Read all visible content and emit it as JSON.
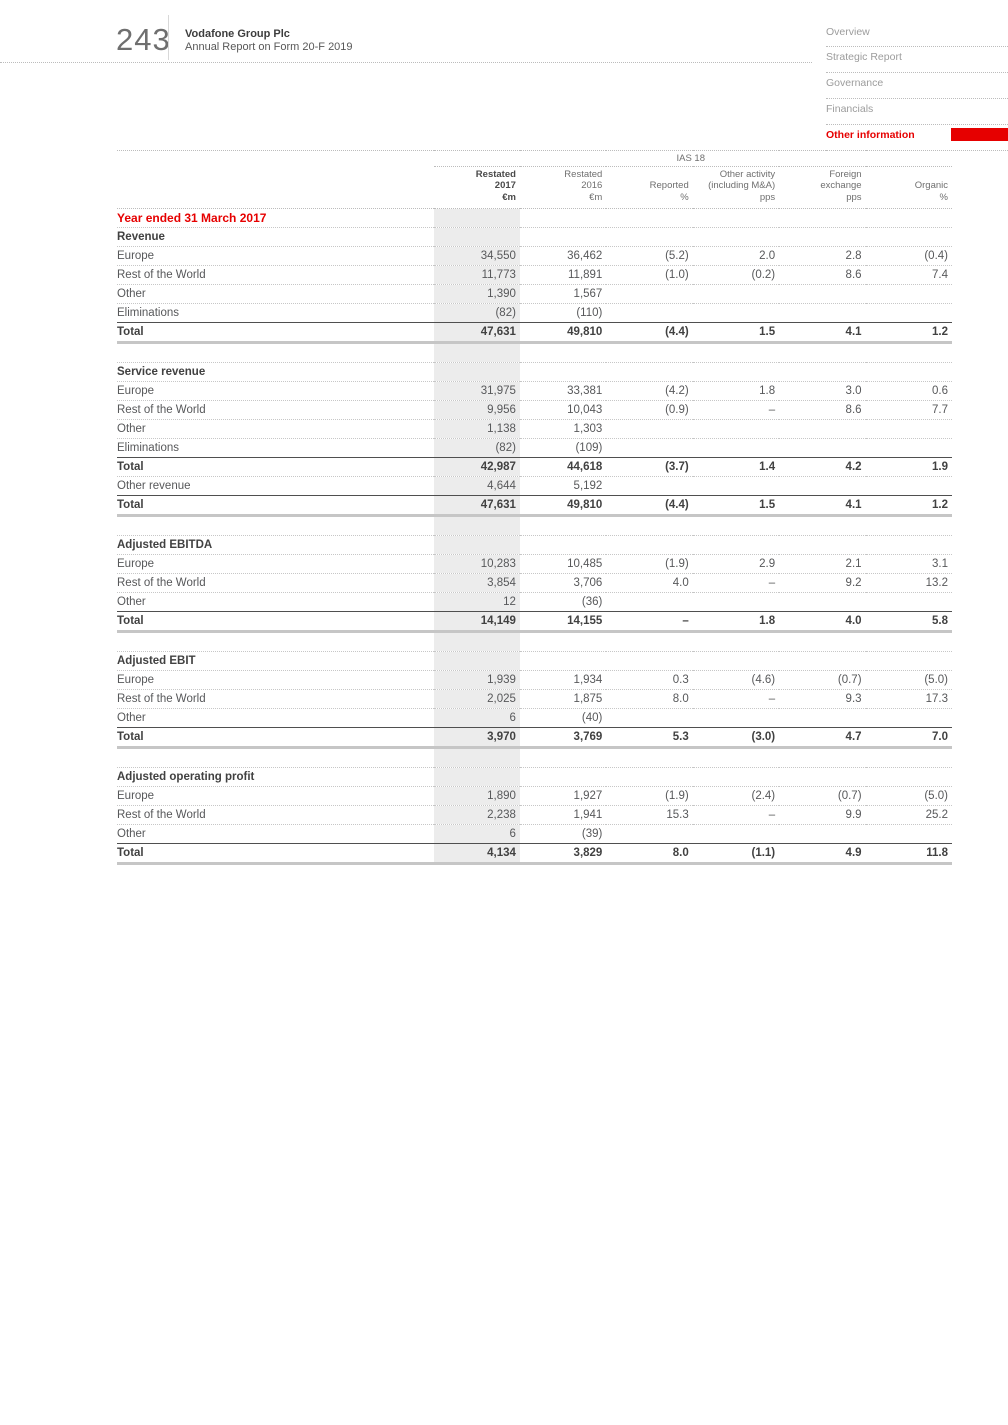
{
  "colors": {
    "accent_red": "#e60000",
    "shaded_column": "#ececec"
  },
  "header": {
    "page_number": "243",
    "title": "Vodafone Group Plc",
    "subtitle": "Annual Report on Form 20-F 2019"
  },
  "nav": {
    "items": [
      {
        "label": "Overview",
        "active": false
      },
      {
        "label": "Strategic Report",
        "active": false
      },
      {
        "label": "Governance",
        "active": false
      },
      {
        "label": "Financials",
        "active": false
      },
      {
        "label": "Other information",
        "active": true
      }
    ]
  },
  "table": {
    "group_header": "IAS 18",
    "columns": [
      {
        "lines": [
          "Restated",
          "2017",
          "€m"
        ],
        "bold": true,
        "shaded": true
      },
      {
        "lines": [
          "Restated",
          "2016",
          "€m"
        ],
        "bold": false,
        "shaded": false
      },
      {
        "lines": [
          "Reported",
          "%"
        ],
        "bold": false,
        "shaded": false
      },
      {
        "lines": [
          "Other activity",
          "(including M&A)",
          "pps"
        ],
        "bold": false,
        "shaded": false
      },
      {
        "lines": [
          "Foreign",
          "exchange",
          "pps"
        ],
        "bold": false,
        "shaded": false
      },
      {
        "lines": [
          "Organic",
          "%"
        ],
        "bold": false,
        "shaded": false
      }
    ],
    "caption_row": "Year ended 31 March 2017",
    "sections": [
      {
        "title": "Revenue",
        "rows": [
          {
            "label": "Europe",
            "values": [
              "34,550",
              "36,462",
              "(5.2)",
              "2.0",
              "2.8",
              "(0.4)"
            ],
            "type": "data"
          },
          {
            "label": "Rest of the World",
            "values": [
              "11,773",
              "11,891",
              "(1.0)",
              "(0.2)",
              "8.6",
              "7.4"
            ],
            "type": "data"
          },
          {
            "label": "Other",
            "values": [
              "1,390",
              "1,567",
              "",
              "",
              "",
              ""
            ],
            "type": "data"
          },
          {
            "label": "Eliminations",
            "values": [
              "(82)",
              "(110)",
              "",
              "",
              "",
              ""
            ],
            "type": "data"
          },
          {
            "label": "Total",
            "values": [
              "47,631",
              "49,810",
              "(4.4)",
              "1.5",
              "4.1",
              "1.2"
            ],
            "type": "total"
          }
        ]
      },
      {
        "title": "Service revenue",
        "rows": [
          {
            "label": "Europe",
            "values": [
              "31,975",
              "33,381",
              "(4.2)",
              "1.8",
              "3.0",
              "0.6"
            ],
            "type": "data"
          },
          {
            "label": "Rest of the World",
            "values": [
              "9,956",
              "10,043",
              "(0.9)",
              "–",
              "8.6",
              "7.7"
            ],
            "type": "data"
          },
          {
            "label": "Other",
            "values": [
              "1,138",
              "1,303",
              "",
              "",
              "",
              ""
            ],
            "type": "data"
          },
          {
            "label": "Eliminations",
            "values": [
              "(82)",
              "(109)",
              "",
              "",
              "",
              ""
            ],
            "type": "data"
          },
          {
            "label": "Total",
            "values": [
              "42,987",
              "44,618",
              "(3.7)",
              "1.4",
              "4.2",
              "1.9"
            ],
            "type": "subtotal"
          },
          {
            "label": "Other revenue",
            "values": [
              "4,644",
              "5,192",
              "",
              "",
              "",
              ""
            ],
            "type": "data"
          },
          {
            "label": "Total",
            "values": [
              "47,631",
              "49,810",
              "(4.4)",
              "1.5",
              "4.1",
              "1.2"
            ],
            "type": "total"
          }
        ]
      },
      {
        "title": "Adjusted EBITDA",
        "rows": [
          {
            "label": "Europe",
            "values": [
              "10,283",
              "10,485",
              "(1.9)",
              "2.9",
              "2.1",
              "3.1"
            ],
            "type": "data"
          },
          {
            "label": "Rest of the World",
            "values": [
              "3,854",
              "3,706",
              "4.0",
              "–",
              "9.2",
              "13.2"
            ],
            "type": "data"
          },
          {
            "label": "Other",
            "values": [
              "12",
              "(36)",
              "",
              "",
              "",
              ""
            ],
            "type": "data"
          },
          {
            "label": "Total",
            "values": [
              "14,149",
              "14,155",
              "–",
              "1.8",
              "4.0",
              "5.8"
            ],
            "type": "total"
          }
        ]
      },
      {
        "title": "Adjusted EBIT",
        "rows": [
          {
            "label": "Europe",
            "values": [
              "1,939",
              "1,934",
              "0.3",
              "(4.6)",
              "(0.7)",
              "(5.0)"
            ],
            "type": "data"
          },
          {
            "label": "Rest of the World",
            "values": [
              "2,025",
              "1,875",
              "8.0",
              "–",
              "9.3",
              "17.3"
            ],
            "type": "data"
          },
          {
            "label": "Other",
            "values": [
              "6",
              "(40)",
              "",
              "",
              "",
              ""
            ],
            "type": "data"
          },
          {
            "label": "Total",
            "values": [
              "3,970",
              "3,769",
              "5.3",
              "(3.0)",
              "4.7",
              "7.0"
            ],
            "type": "total"
          }
        ]
      },
      {
        "title": "Adjusted operating profit",
        "rows": [
          {
            "label": "Europe",
            "values": [
              "1,890",
              "1,927",
              "(1.9)",
              "(2.4)",
              "(0.7)",
              "(5.0)"
            ],
            "type": "data"
          },
          {
            "label": "Rest of the World",
            "values": [
              "2,238",
              "1,941",
              "15.3",
              "–",
              "9.9",
              "25.2"
            ],
            "type": "data"
          },
          {
            "label": "Other",
            "values": [
              "6",
              "(39)",
              "",
              "",
              "",
              ""
            ],
            "type": "data"
          },
          {
            "label": "Total",
            "values": [
              "4,134",
              "3,829",
              "8.0",
              "(1.1)",
              "4.9",
              "11.8"
            ],
            "type": "total"
          }
        ]
      }
    ]
  }
}
